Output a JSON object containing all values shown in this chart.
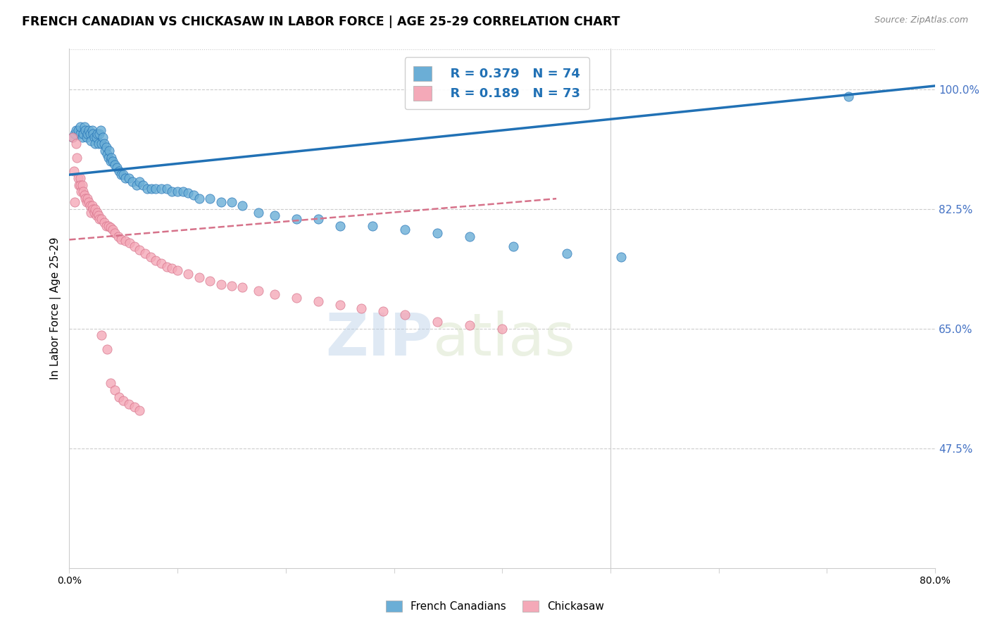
{
  "title": "FRENCH CANADIAN VS CHICKASAW IN LABOR FORCE | AGE 25-29 CORRELATION CHART",
  "source": "Source: ZipAtlas.com",
  "ylabel": "In Labor Force | Age 25-29",
  "xlim": [
    0.0,
    0.8
  ],
  "ylim": [
    0.3,
    1.06
  ],
  "yticks": [
    0.475,
    0.65,
    0.825,
    1.0
  ],
  "ytick_labels": [
    "47.5%",
    "65.0%",
    "82.5%",
    "100.0%"
  ],
  "legend_labels": [
    "French Canadians",
    "Chickasaw"
  ],
  "legend_r_blue": "R = 0.379",
  "legend_n_blue": "N = 74",
  "legend_r_pink": "R = 0.189",
  "legend_n_pink": "N = 73",
  "color_blue": "#6baed6",
  "color_pink": "#f4a9b8",
  "color_blue_dark": "#2171b5",
  "color_pink_dark": "#d6728a",
  "watermark_zip": "ZIP",
  "watermark_atlas": "atlas",
  "blue_scatter_x": [
    0.003,
    0.005,
    0.006,
    0.008,
    0.01,
    0.01,
    0.012,
    0.013,
    0.014,
    0.015,
    0.016,
    0.017,
    0.018,
    0.019,
    0.02,
    0.021,
    0.022,
    0.023,
    0.024,
    0.025,
    0.026,
    0.027,
    0.028,
    0.029,
    0.03,
    0.031,
    0.032,
    0.033,
    0.034,
    0.035,
    0.036,
    0.037,
    0.038,
    0.039,
    0.04,
    0.042,
    0.044,
    0.046,
    0.048,
    0.05,
    0.052,
    0.055,
    0.058,
    0.062,
    0.065,
    0.068,
    0.072,
    0.076,
    0.08,
    0.085,
    0.09,
    0.095,
    0.1,
    0.105,
    0.11,
    0.115,
    0.12,
    0.13,
    0.14,
    0.15,
    0.16,
    0.175,
    0.19,
    0.21,
    0.23,
    0.25,
    0.28,
    0.31,
    0.34,
    0.37,
    0.41,
    0.46,
    0.51,
    0.72
  ],
  "blue_scatter_y": [
    0.93,
    0.935,
    0.94,
    0.94,
    0.935,
    0.945,
    0.93,
    0.935,
    0.945,
    0.94,
    0.93,
    0.935,
    0.94,
    0.935,
    0.925,
    0.94,
    0.935,
    0.93,
    0.92,
    0.93,
    0.935,
    0.92,
    0.935,
    0.94,
    0.92,
    0.93,
    0.92,
    0.91,
    0.915,
    0.905,
    0.9,
    0.91,
    0.895,
    0.9,
    0.895,
    0.89,
    0.885,
    0.88,
    0.875,
    0.875,
    0.87,
    0.87,
    0.865,
    0.86,
    0.865,
    0.86,
    0.855,
    0.855,
    0.855,
    0.855,
    0.855,
    0.85,
    0.85,
    0.85,
    0.848,
    0.845,
    0.84,
    0.84,
    0.835,
    0.835,
    0.83,
    0.82,
    0.815,
    0.81,
    0.81,
    0.8,
    0.8,
    0.795,
    0.79,
    0.785,
    0.77,
    0.76,
    0.755,
    0.99
  ],
  "pink_scatter_x": [
    0.003,
    0.004,
    0.005,
    0.006,
    0.007,
    0.008,
    0.009,
    0.01,
    0.01,
    0.011,
    0.012,
    0.013,
    0.014,
    0.015,
    0.016,
    0.017,
    0.018,
    0.019,
    0.02,
    0.021,
    0.022,
    0.023,
    0.024,
    0.025,
    0.026,
    0.027,
    0.028,
    0.03,
    0.032,
    0.034,
    0.036,
    0.038,
    0.04,
    0.042,
    0.045,
    0.048,
    0.052,
    0.056,
    0.06,
    0.065,
    0.07,
    0.075,
    0.08,
    0.085,
    0.09,
    0.095,
    0.1,
    0.11,
    0.12,
    0.13,
    0.14,
    0.15,
    0.16,
    0.175,
    0.19,
    0.21,
    0.23,
    0.25,
    0.27,
    0.29,
    0.31,
    0.34,
    0.37,
    0.4,
    0.03,
    0.035,
    0.038,
    0.042,
    0.046,
    0.05,
    0.055,
    0.06,
    0.065
  ],
  "pink_scatter_y": [
    0.93,
    0.88,
    0.835,
    0.92,
    0.9,
    0.87,
    0.86,
    0.87,
    0.86,
    0.85,
    0.86,
    0.85,
    0.845,
    0.84,
    0.835,
    0.84,
    0.835,
    0.83,
    0.82,
    0.83,
    0.825,
    0.82,
    0.825,
    0.815,
    0.82,
    0.815,
    0.81,
    0.81,
    0.805,
    0.8,
    0.8,
    0.798,
    0.795,
    0.79,
    0.785,
    0.78,
    0.778,
    0.775,
    0.77,
    0.765,
    0.76,
    0.755,
    0.75,
    0.745,
    0.74,
    0.738,
    0.735,
    0.73,
    0.725,
    0.72,
    0.715,
    0.712,
    0.71,
    0.705,
    0.7,
    0.695,
    0.69,
    0.685,
    0.68,
    0.675,
    0.67,
    0.66,
    0.655,
    0.65,
    0.64,
    0.62,
    0.57,
    0.56,
    0.55,
    0.545,
    0.54,
    0.535,
    0.53
  ]
}
